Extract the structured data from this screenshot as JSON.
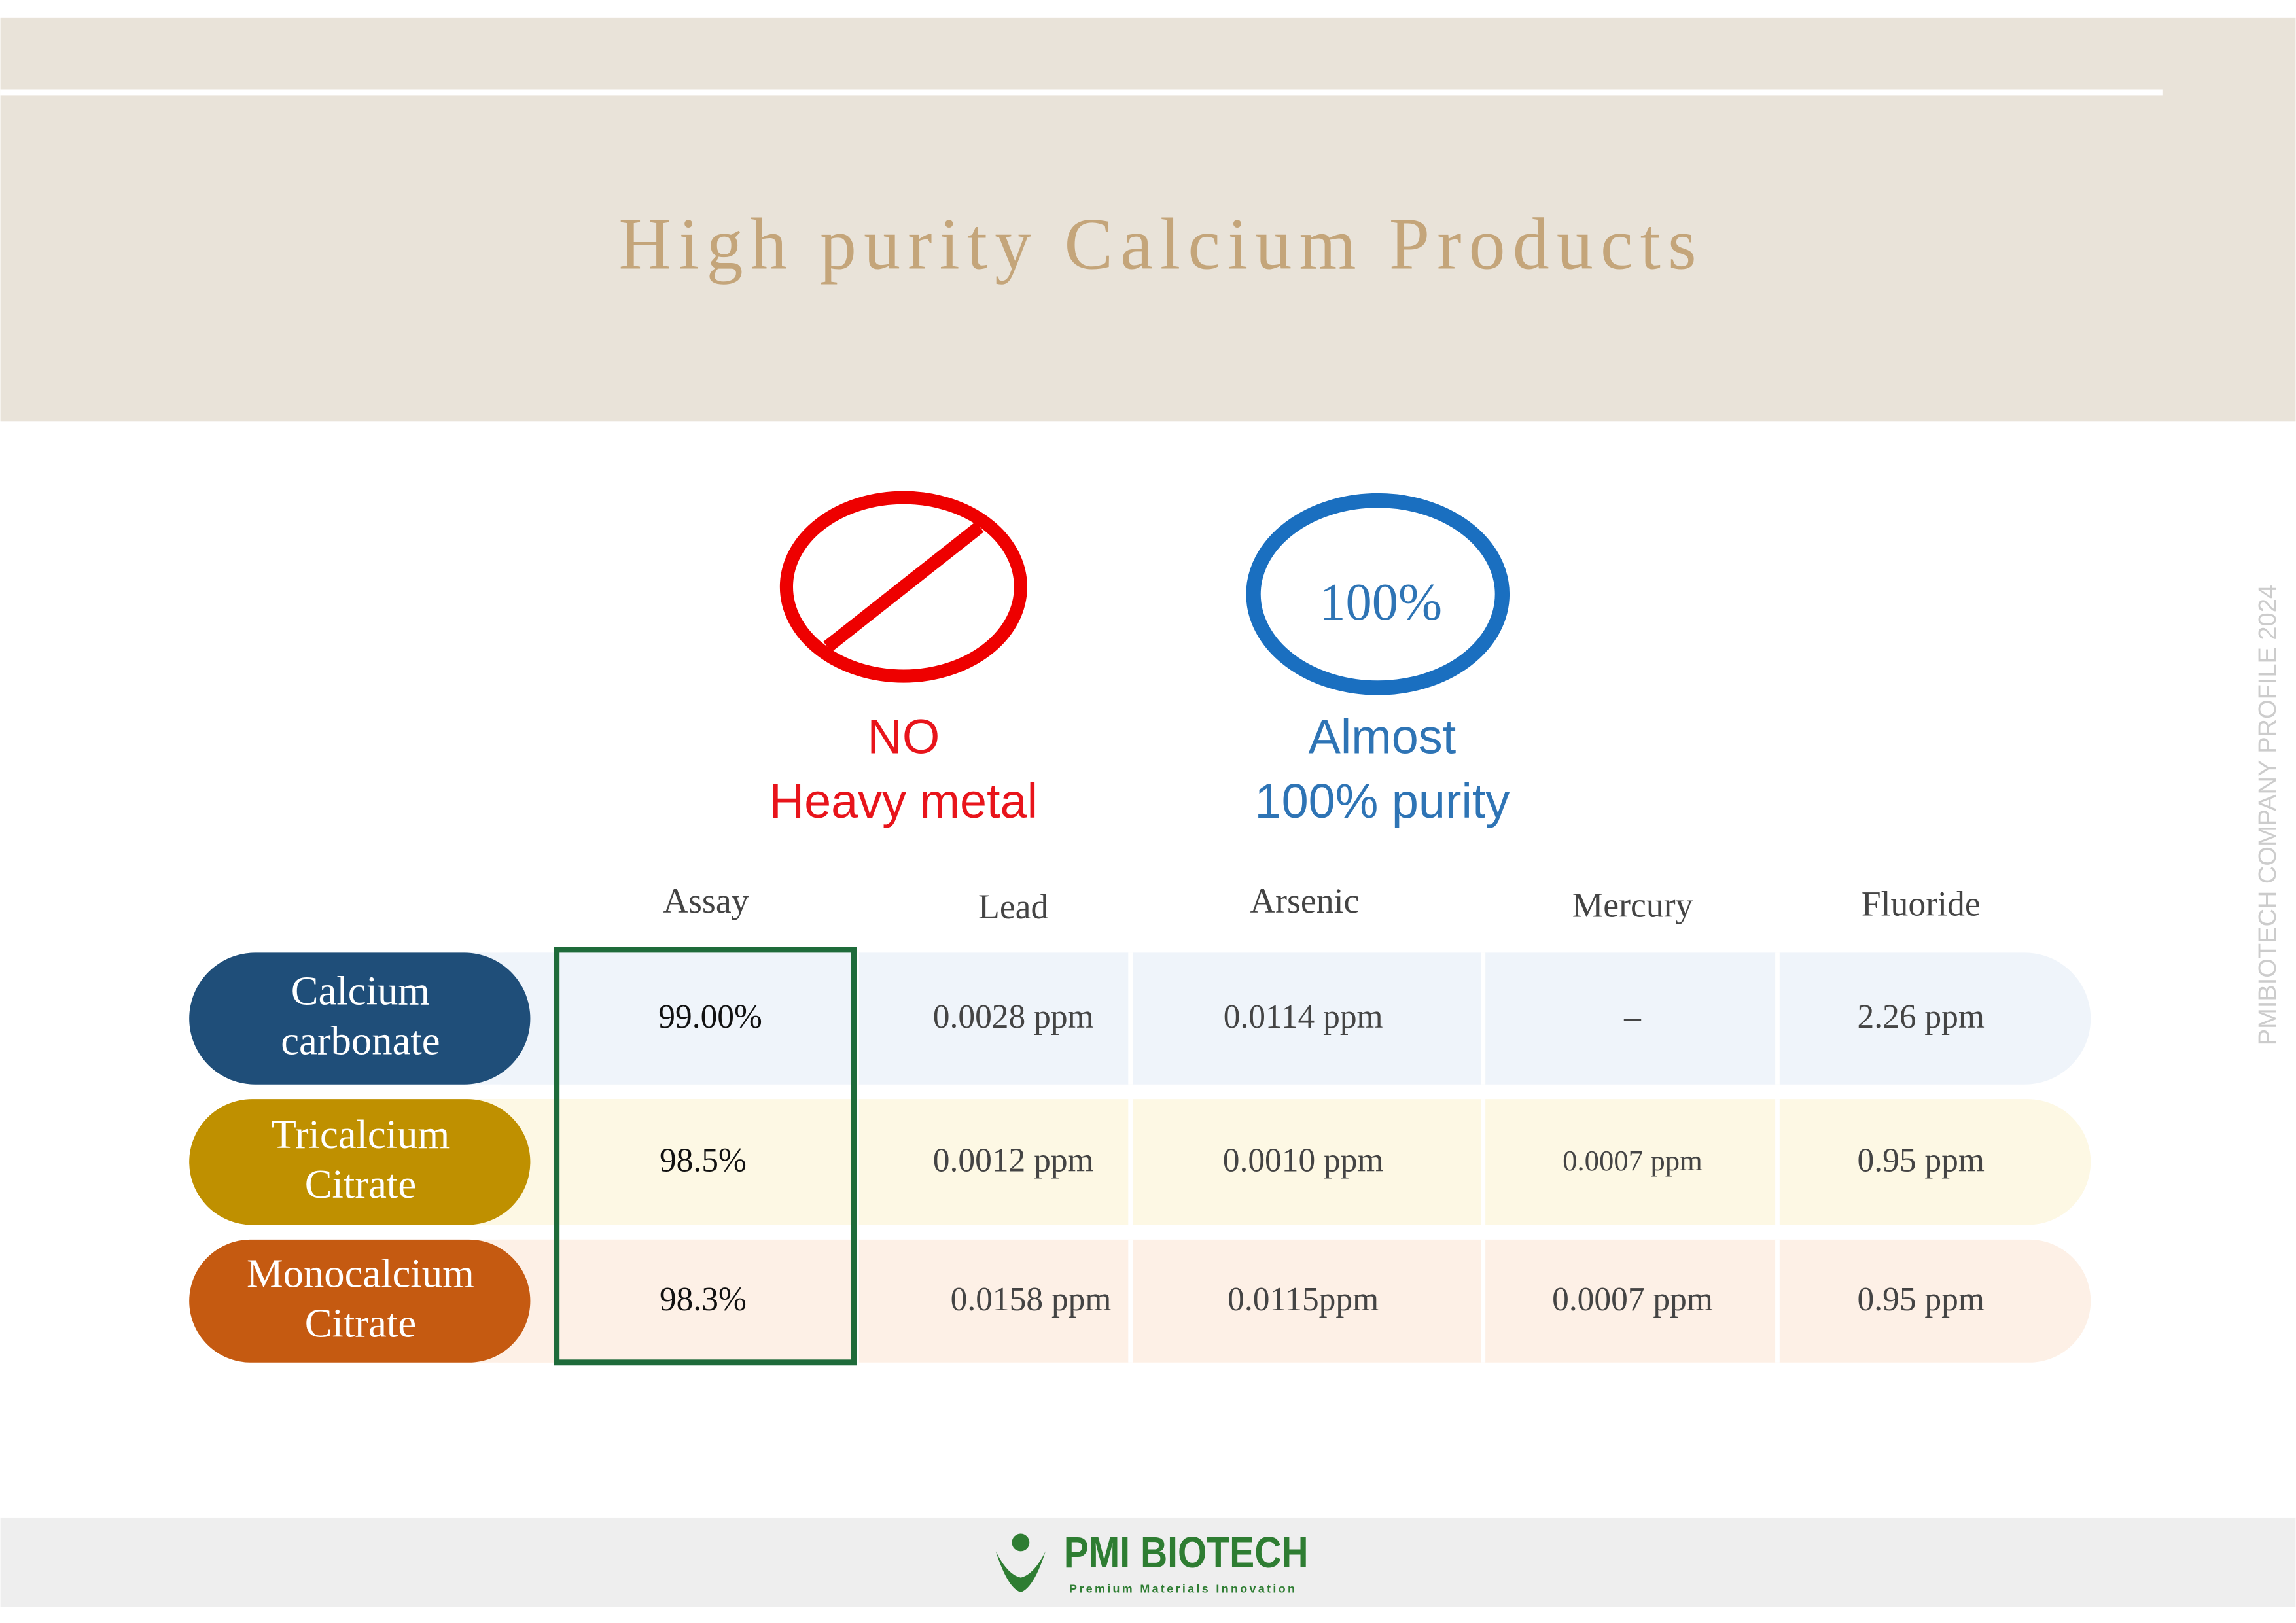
{
  "header": {
    "title": "High purity Calcium Products"
  },
  "badges": [
    {
      "lines": [
        "NO",
        "Heavy metal"
      ]
    },
    {
      "icon_text": "100%",
      "lines": [
        "Almost",
        "100% purity"
      ]
    }
  ],
  "table": {
    "columns": [
      "Assay",
      "Lead",
      "Arsenic",
      "Mercury",
      "Fluoride"
    ],
    "rows": [
      {
        "name": [
          "Calcium",
          "carbonate"
        ],
        "cells": [
          "99.00%",
          "0.0028 ppm",
          "0.0114 ppm",
          "–",
          "2.26 ppm"
        ]
      },
      {
        "name": [
          "Tricalcium",
          "Citrate"
        ],
        "cells": [
          "98.5%",
          "0.0012 ppm",
          "0.0010 ppm",
          "0.0007 ppm",
          "0.95 ppm"
        ]
      },
      {
        "name": [
          "Monocalcium",
          "Citrate"
        ],
        "cells": [
          "98.3%",
          "0.0158 ppm",
          "0.0115ppm",
          "0.0007 ppm",
          "0.95 ppm"
        ]
      }
    ]
  },
  "side_text": "PMIBIOTECH COMPANY  PROFILE 2024",
  "footer": {
    "brand": "PMI BIOTECH",
    "tagline": "Premium Materials Innovation"
  }
}
